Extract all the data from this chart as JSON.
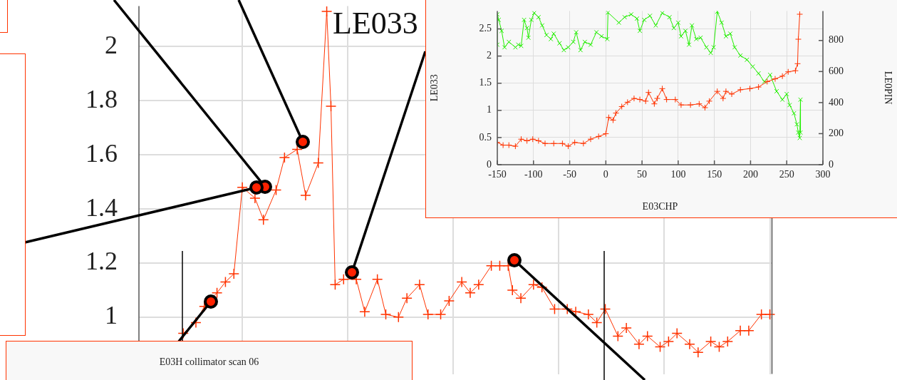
{
  "chart_data": [
    {
      "type": "line",
      "title": "LE033",
      "annotations": [
        "E03H collimator scan 06"
      ],
      "categories": [
        null,
        null,
        null,
        null,
        null,
        null,
        null,
        null,
        null,
        null,
        null,
        null,
        null,
        null,
        null,
        null,
        null,
        null,
        null,
        null,
        null,
        null,
        null,
        null,
        null,
        null,
        null,
        null,
        null,
        null,
        null,
        null,
        null,
        null,
        null,
        null,
        null,
        null,
        null,
        null,
        null,
        null,
        null,
        null,
        null,
        null,
        null,
        null,
        null,
        null,
        null,
        null,
        null,
        null,
        null,
        null,
        null,
        null,
        null,
        null,
        null,
        null,
        null,
        null,
        null,
        null,
        null,
        null,
        null,
        null,
        null,
        null,
        null,
        null,
        null,
        null,
        null,
        null,
        null,
        null,
        null,
        null,
        null,
        null,
        null,
        null,
        null,
        null,
        null,
        null,
        null,
        null,
        null,
        null,
        null,
        null,
        null,
        null,
        null,
        null,
        null,
        null,
        null,
        null,
        null,
        null,
        null,
        null,
        null,
        null,
        null,
        null,
        null,
        null,
        null,
        null,
        null,
        null,
        null,
        null,
        null,
        null,
        null,
        null,
        null,
        null,
        null,
        null,
        null,
        null,
        null,
        null,
        null,
        null,
        null,
        null,
        null,
        null,
        null,
        null,
        null,
        null,
        null,
        null,
        null,
        null,
        null,
        null,
        null,
        null
      ],
      "series": [
        {
          "color": "#ff3300",
          "marker": "cross",
          "values": [
            null,
            null,
            null,
            null,
            null,
            null,
            null,
            null,
            null,
            null,
            0.94,
            null,
            null,
            0.98,
            null,
            1.04,
            null,
            null,
            1.09,
            null,
            1.13,
            null,
            1.16,
            null,
            1.48,
            null,
            null,
            1.44,
            null,
            1.36,
            null,
            null,
            1.47,
            null,
            1.59,
            null,
            null,
            1.62,
            null,
            1.45,
            null,
            null,
            1.57,
            null,
            2.13,
            1.78,
            1.12,
            null,
            1.14,
            null,
            null,
            1.14,
            null,
            1.02,
            null,
            null,
            1.14,
            null,
            1.01,
            null,
            null,
            1.0,
            null,
            1.07,
            null,
            null,
            1.12,
            null,
            1.01,
            null,
            null,
            1.01,
            null,
            1.06,
            null,
            null,
            1.13,
            null,
            1.09,
            null,
            1.12,
            null,
            null,
            1.19,
            null,
            1.19,
            null,
            1.19,
            1.1,
            null,
            1.07,
            null,
            null,
            1.12,
            null,
            1.11,
            null,
            null,
            1.03,
            null,
            null,
            1.03,
            null,
            1.02,
            null,
            null,
            1.01,
            null,
            0.98,
            null,
            1.03,
            null,
            null,
            0.93,
            null,
            0.96,
            null,
            null,
            0.9,
            null,
            0.93,
            null,
            null,
            0.89,
            null,
            0.91,
            null,
            0.94,
            null,
            null,
            0.9,
            null,
            0.87,
            null,
            null,
            0.91,
            null,
            0.89,
            null,
            0.91,
            null,
            null,
            0.95,
            null,
            0.95,
            null,
            null,
            1.01,
            null,
            1.01
          ]
        }
      ],
      "ylim": [
        0.79,
        2.15
      ],
      "yticks": [
        1,
        1.2,
        1.4,
        1.6,
        1.8,
        2
      ],
      "grid": true,
      "tick_labels": "y",
      "legend": false
    },
    {
      "type": "line",
      "xlabel": "E03CHP",
      "ylabel": "LE033",
      "y2label": "LE0PIN",
      "series": [
        {
          "color": "#ff3300",
          "marker": "cross",
          "axis": "y",
          "x": [
            -150,
            -142,
            -134,
            -125,
            -117,
            -109,
            -101,
            -93,
            -84,
            -72,
            -60,
            -52,
            -43,
            -31,
            -21,
            -10,
            0,
            4,
            10,
            14,
            22,
            30,
            39,
            47,
            55,
            59,
            67,
            71,
            78,
            84,
            96,
            104,
            117,
            129,
            137,
            143,
            154,
            162,
            166,
            174,
            186,
            199,
            211,
            223,
            234,
            244,
            252,
            262,
            265,
            266,
            268
          ],
          "values": [
            0.41,
            0.36,
            0.36,
            0.34,
            0.47,
            0.44,
            0.47,
            0.44,
            0.39,
            0.39,
            0.39,
            0.34,
            0.41,
            0.39,
            0.47,
            0.52,
            0.57,
            0.87,
            0.82,
            0.95,
            1.07,
            1.15,
            1.22,
            1.2,
            1.17,
            1.33,
            1.12,
            1.22,
            1.4,
            1.2,
            1.2,
            1.1,
            1.1,
            1.12,
            1.05,
            1.17,
            1.35,
            1.22,
            1.35,
            1.3,
            1.38,
            1.4,
            1.43,
            1.53,
            1.58,
            1.63,
            1.71,
            1.73,
            1.86,
            2.31,
            2.77
          ]
        },
        {
          "color": "#22ee00",
          "marker": "x",
          "axis": "y2",
          "x": [
            -150,
            -150,
            -148,
            -144,
            -140,
            -134,
            -125,
            -121,
            -117,
            -113,
            -109,
            -107,
            -103,
            -99,
            -93,
            -88,
            -82,
            -76,
            -72,
            -64,
            -58,
            -52,
            -45,
            -41,
            -35,
            -29,
            -21,
            -13,
            -6,
            2,
            3,
            18,
            26,
            35,
            43,
            47,
            53,
            61,
            69,
            78,
            88,
            94,
            100,
            104,
            110,
            115,
            119,
            125,
            131,
            139,
            145,
            149,
            154,
            160,
            166,
            172,
            178,
            186,
            195,
            203,
            211,
            219,
            227,
            236,
            244,
            250,
            254,
            260,
            264,
            266,
            268,
            269,
            269
          ],
          "values": [
            773,
            968,
            933,
            862,
            756,
            791,
            756,
            773,
            765,
            933,
            880,
            818,
            933,
            977,
            950,
            897,
            835,
            809,
            844,
            782,
            738,
            756,
            791,
            853,
            738,
            791,
            773,
            853,
            827,
            809,
            980,
            915,
            950,
            968,
            941,
            862,
            933,
            959,
            897,
            977,
            950,
            880,
            915,
            827,
            862,
            773,
            897,
            809,
            818,
            756,
            720,
            756,
            986,
            915,
            827,
            844,
            756,
            703,
            676,
            632,
            588,
            535,
            579,
            473,
            419,
            455,
            384,
            331,
            260,
            207,
            172,
            419,
            207
          ]
        }
      ],
      "xlim": [
        -150,
        300
      ],
      "xticks": [
        -150,
        -100,
        -50,
        0,
        50,
        100,
        150,
        200,
        250,
        300
      ],
      "ylim": [
        0,
        2.83
      ],
      "yticks": [
        0,
        0.5,
        1,
        1.5,
        2,
        2.5
      ],
      "y2lim": [
        0,
        990
      ],
      "y2ticks": [
        0,
        200,
        400,
        600,
        800
      ],
      "grid": true,
      "legend": false
    }
  ]
}
